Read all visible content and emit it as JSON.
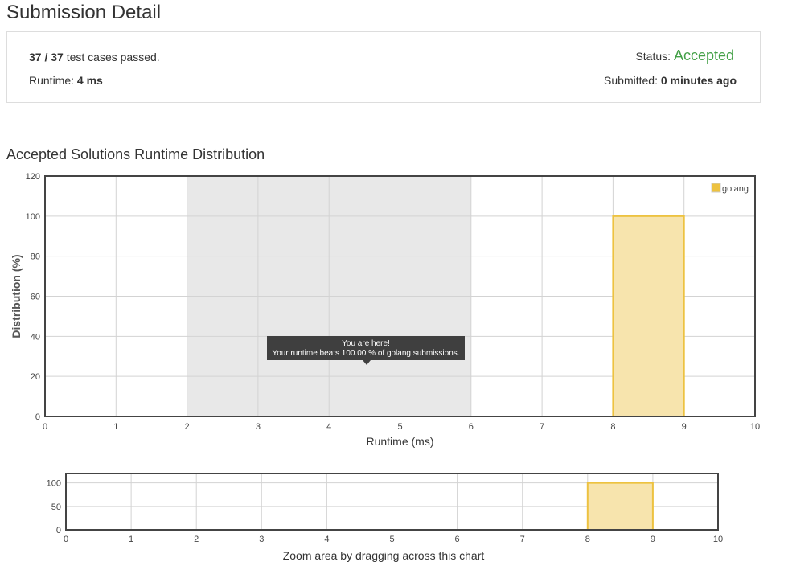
{
  "page": {
    "title": "Submission Detail"
  },
  "summary": {
    "passed": "37 / 37",
    "passed_suffix": "test cases passed.",
    "runtime_label": "Runtime:",
    "runtime_value": "4 ms",
    "status_label": "Status:",
    "status_value": "Accepted",
    "submitted_label": "Submitted:",
    "submitted_value": "0 minutes ago"
  },
  "section": {
    "title": "Accepted Solutions Runtime Distribution"
  },
  "tooltip": {
    "line1": "You are here!",
    "line2": "Your runtime beats 100.00 % of golang submissions."
  },
  "zoom": {
    "caption": "Zoom area by dragging across this chart"
  },
  "colors": {
    "accepted": "#43a047",
    "bar_fill": "#f7e4ad",
    "bar_stroke": "#edc240",
    "highlight_band": "#e8e8e8",
    "tooltip_bg": "#3f3f3f"
  },
  "chart_data": [
    {
      "type": "bar",
      "title": "",
      "xlabel": "Runtime (ms)",
      "ylabel": "Distribution (%)",
      "xlim": [
        0,
        10
      ],
      "ylim": [
        0,
        120
      ],
      "xticks": [
        "0",
        "1",
        "2",
        "3",
        "4",
        "5",
        "6",
        "7",
        "8",
        "9",
        "10"
      ],
      "yticks": [
        "0",
        "20",
        "40",
        "60",
        "80",
        "100",
        "120"
      ],
      "series": [
        {
          "name": "golang",
          "bins": [
            {
              "x0": 8,
              "x1": 9,
              "value": 100
            }
          ]
        }
      ],
      "highlight_range": [
        2,
        6
      ],
      "legend": "top-right",
      "grid": true
    },
    {
      "type": "bar",
      "title": "",
      "xlabel": "",
      "ylabel": "",
      "xlim": [
        0,
        10
      ],
      "ylim": [
        0,
        120
      ],
      "xticks": [
        "0",
        "1",
        "2",
        "3",
        "4",
        "5",
        "6",
        "7",
        "8",
        "9",
        "10"
      ],
      "yticks": [
        "0",
        "50",
        "100"
      ],
      "series": [
        {
          "bins": [
            {
              "x0": 8,
              "x1": 9,
              "value": 100
            }
          ]
        }
      ],
      "grid": true
    }
  ]
}
